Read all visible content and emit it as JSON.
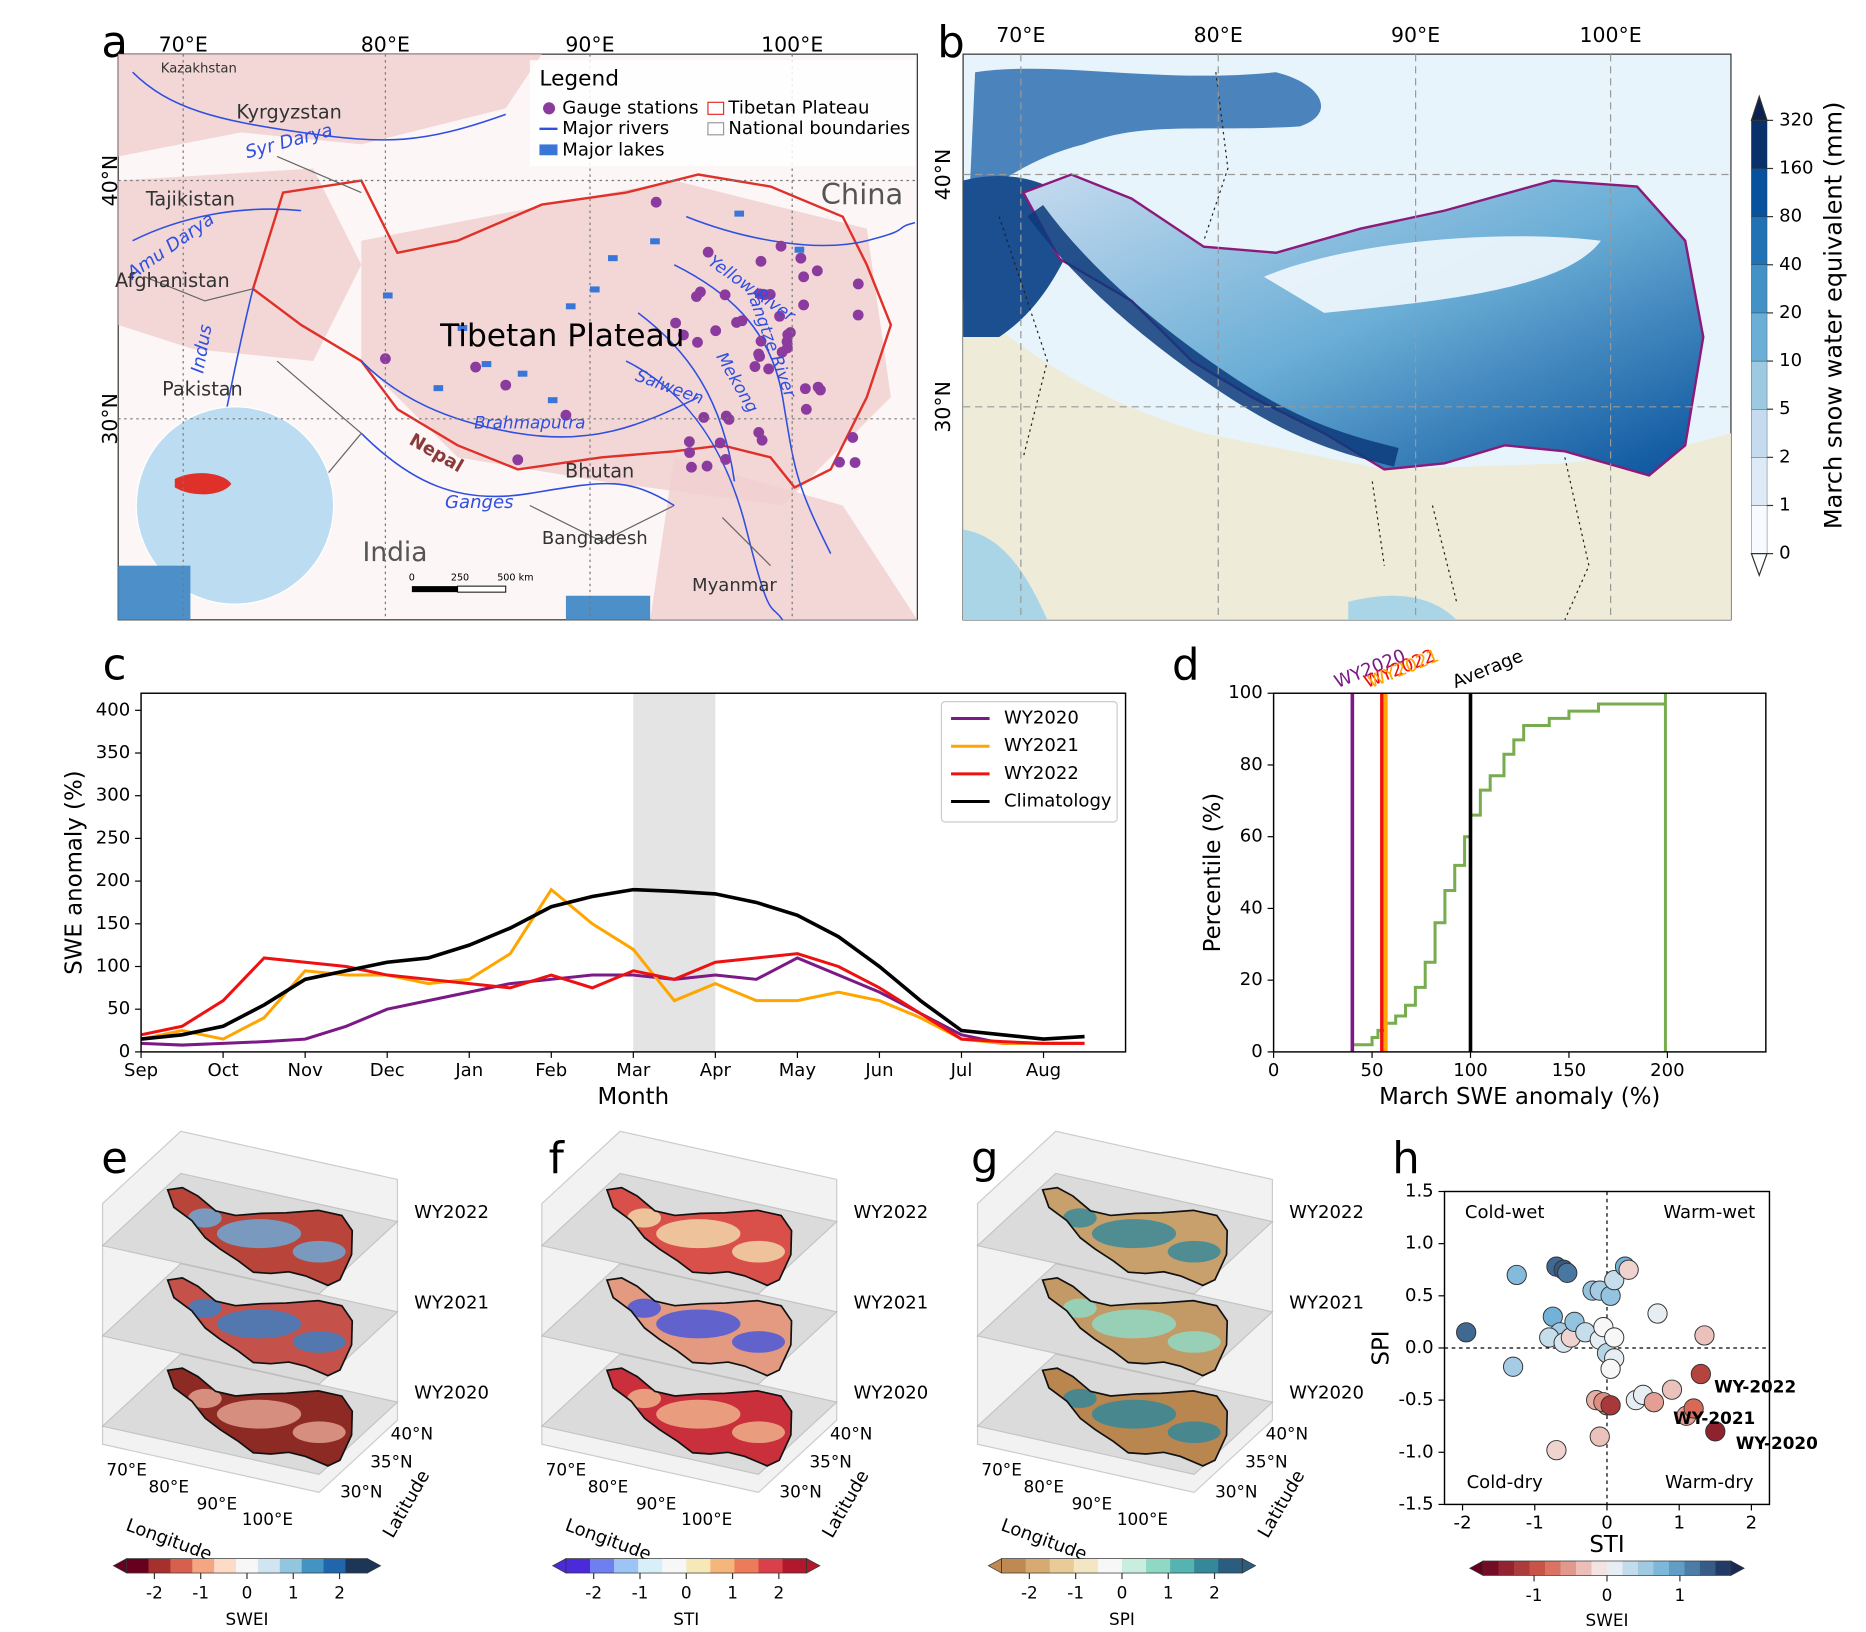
{
  "panel_labels": [
    "a",
    "b",
    "c",
    "d",
    "e",
    "f",
    "g",
    "h"
  ],
  "map_a": {
    "lon_labels": [
      "70°E",
      "80°E",
      "90°E",
      "100°E"
    ],
    "lat_labels": [
      "40°N",
      "30°N"
    ],
    "legend": {
      "title": "Legend",
      "items": [
        "Gauge stations",
        "Major rivers",
        "Major lakes",
        "Tibetan Plateau",
        "National boundaries"
      ]
    },
    "places": [
      "Kazakhstan",
      "Kyrgyzstan",
      "Syr Darya",
      "Tajikistan",
      "Amu Darya",
      "Afghanistan",
      "Indus",
      "Pakistan",
      "Tibetan Plateau",
      "China",
      "Yellow River",
      "Yangtze River",
      "Mekong",
      "Salween",
      "Brahmaputra",
      "Nepal",
      "Bhutan",
      "Ganges",
      "India",
      "Bangladesh",
      "Myanmar"
    ],
    "scale_labels": [
      "0",
      "250",
      "500 km"
    ]
  },
  "map_b": {
    "lon_labels": [
      "70°E",
      "80°E",
      "90°E",
      "100°E"
    ],
    "lat_labels": [
      "40°N",
      "30°N"
    ],
    "colorbar": {
      "label": "March snow water equivalent (mm)",
      "ticks": [
        0,
        1,
        2,
        5,
        10,
        20,
        40,
        80,
        160,
        320
      ],
      "colors": [
        "#f7fbff",
        "#deebf7",
        "#c6dbef",
        "#9ecae1",
        "#6baed6",
        "#4292c6",
        "#2171b5",
        "#08519c",
        "#08306b"
      ],
      "extend_color": "#0b2250"
    }
  },
  "maps_3d": [
    {
      "layers": [
        "WY2022",
        "WY2021",
        "WY2020"
      ],
      "lon_labels": [
        "70°E",
        "80°E",
        "90°E",
        "100°E"
      ],
      "lat_labels": [
        "40°N",
        "35°N",
        "30°N"
      ],
      "xlabel": "Longitude",
      "ylabel": "Latitude",
      "layer_colors": [
        [
          "#b8443a",
          "#6fa8d6"
        ],
        [
          "#c4514a",
          "#3f7fc2"
        ],
        [
          "#8e2a24",
          "#e3a08f"
        ]
      ],
      "colorbar": {
        "label": "SWEI",
        "ticks": [
          -2,
          -1,
          0,
          1,
          2
        ],
        "lim": [
          -2.6,
          2.6
        ],
        "colors": [
          "#67001f",
          "#a5302e",
          "#d6604d",
          "#f4a582",
          "#fddbc7",
          "#f7f7f7",
          "#d1e5f0",
          "#92c5de",
          "#4393c3",
          "#2166ac",
          "#1d3557"
        ]
      }
    },
    {
      "layers": [
        "WY2022",
        "WY2021",
        "WY2020"
      ],
      "lon_labels": [
        "70°E",
        "80°E",
        "90°E",
        "100°E"
      ],
      "lat_labels": [
        "40°N",
        "35°N",
        "30°N"
      ],
      "xlabel": "Longitude",
      "ylabel": "Latitude",
      "layer_colors": [
        [
          "#d9504a",
          "#f1d6a8"
        ],
        [
          "#e39a80",
          "#4a58d8"
        ],
        [
          "#c9303c",
          "#f0b08a"
        ]
      ],
      "colorbar": {
        "label": "STI",
        "ticks": [
          -2,
          -1,
          0,
          1,
          2
        ],
        "lim": [
          -2.6,
          2.6
        ],
        "colors": [
          "#4b2ad9",
          "#6f7ff0",
          "#9cc4f5",
          "#d8eef8",
          "#f7f7f7",
          "#f7e8b8",
          "#f4b67b",
          "#ec7b5a",
          "#d9404a",
          "#b2182b"
        ]
      }
    },
    {
      "layers": [
        "WY2022",
        "WY2021",
        "WY2020"
      ],
      "lon_labels": [
        "70°E",
        "80°E",
        "90°E",
        "100°E"
      ],
      "lat_labels": [
        "40°N",
        "35°N",
        "30°N"
      ],
      "xlabel": "Longitude",
      "ylabel": "Latitude",
      "layer_colors": [
        [
          "#c7a06c",
          "#3a8a9a"
        ],
        [
          "#c39a66",
          "#8fd9c4"
        ],
        [
          "#b98650",
          "#35879a"
        ]
      ],
      "colorbar": {
        "label": "SPI",
        "ticks": [
          -2,
          -1,
          0,
          1,
          2
        ],
        "lim": [
          -2.6,
          2.6
        ],
        "colors": [
          "#bf8a52",
          "#d6aa70",
          "#e8cb96",
          "#f5e6c3",
          "#f7f7f7",
          "#c9eee0",
          "#8fd9c4",
          "#56b4b0",
          "#35879a",
          "#2a5d7f"
        ]
      }
    }
  ],
  "chart_data": [
    {
      "type": "line",
      "xlabel": "Month",
      "ylabel": "SWE anomaly (%)",
      "categories": [
        "Sep",
        null,
        "Oct",
        null,
        "Nov",
        null,
        "Dec",
        null,
        "Jan",
        null,
        "Feb",
        null,
        "Mar",
        null,
        "Apr",
        null,
        "May",
        null,
        "Jun",
        null,
        "Jul",
        null,
        "Aug",
        null
      ],
      "shaded_span": [
        "Mar",
        "Apr"
      ],
      "ylim": [
        0,
        420
      ],
      "yticks": [
        0,
        50,
        100,
        150,
        200,
        250,
        300,
        350,
        400
      ],
      "legend": "upper right",
      "series": [
        {
          "name": "WY2020",
          "color": "#7b1a86",
          "values": [
            10,
            8,
            10,
            12,
            15,
            30,
            50,
            60,
            70,
            80,
            85,
            90,
            90,
            85,
            90,
            85,
            110,
            90,
            70,
            45,
            20,
            10,
            10,
            10
          ]
        },
        {
          "name": "WY2021",
          "color": "#ffa500",
          "values": [
            15,
            25,
            15,
            40,
            95,
            90,
            90,
            80,
            85,
            115,
            190,
            150,
            120,
            60,
            80,
            60,
            60,
            70,
            60,
            40,
            15,
            10,
            10,
            10
          ]
        },
        {
          "name": "WY2022",
          "color": "#ee1111",
          "values": [
            20,
            30,
            60,
            110,
            105,
            100,
            90,
            85,
            80,
            75,
            90,
            75,
            95,
            85,
            105,
            110,
            115,
            100,
            75,
            45,
            15,
            12,
            10,
            10
          ]
        },
        {
          "name": "Climatology",
          "color": "#000000",
          "values": [
            15,
            20,
            30,
            55,
            85,
            95,
            105,
            110,
            125,
            145,
            170,
            182,
            190,
            188,
            185,
            175,
            160,
            135,
            100,
            60,
            25,
            20,
            15,
            18
          ]
        }
      ]
    },
    {
      "type": "line",
      "xlabel": "March SWE anomaly (%)",
      "ylabel": "Percentile (%)",
      "xlim": [
        0,
        250
      ],
      "xticks": [
        0,
        50,
        100,
        150,
        200
      ],
      "ylim": [
        0,
        100
      ],
      "yticks": [
        0,
        20,
        40,
        60,
        80,
        100
      ],
      "markers": [
        {
          "label": "WY2020",
          "value": 40,
          "color": "#7b1a86"
        },
        {
          "label": "WY2022",
          "value": 55,
          "color": "#ee1111"
        },
        {
          "label": "WY2021",
          "value": 57,
          "color": "#ffa500"
        },
        {
          "label": "Average",
          "value": 100,
          "color": "#000000"
        }
      ],
      "series": [
        {
          "color": "#77ac4f",
          "x": [
            40,
            40,
            50,
            50,
            53,
            53,
            57,
            57,
            62,
            62,
            67,
            67,
            72,
            72,
            77,
            77,
            82,
            82,
            87,
            87,
            92,
            92,
            97,
            97,
            100,
            100,
            105,
            105,
            110,
            110,
            117,
            117,
            122,
            122,
            127,
            127,
            140,
            140,
            150,
            150,
            165,
            165,
            199,
            199,
            199
          ],
          "values": [
            0,
            2,
            2,
            4,
            4,
            6,
            6,
            8,
            8,
            10,
            10,
            13,
            13,
            18,
            18,
            25,
            25,
            36,
            36,
            45,
            45,
            52,
            52,
            60,
            60,
            66,
            66,
            73,
            73,
            77,
            77,
            83,
            83,
            87,
            87,
            91,
            91,
            93,
            93,
            95,
            95,
            97,
            97,
            100,
            0
          ]
        }
      ]
    },
    {
      "type": "scatter",
      "xlabel": "STI",
      "ylabel": "SPI",
      "xlim": [
        -2.25,
        2.25
      ],
      "xticks": [
        -2,
        -1,
        0,
        1,
        2
      ],
      "ylim": [
        -1.5,
        1.5
      ],
      "yticks": [
        -1.5,
        {
          "value": -1.0,
          "label": "-1.0"
        },
        -0.5,
        {
          "value": 0,
          "label": "0.0"
        },
        0.5,
        {
          "value": 1.0,
          "label": "1.0"
        },
        1.5
      ],
      "quadrant_labels": [
        "Cold-wet",
        "Warm-wet",
        "Cold-dry",
        "Warm-dry"
      ],
      "annotations": [
        "WY-2022",
        "WY-2021",
        "WY-2020"
      ],
      "x": [
        -1.95,
        -1.3,
        -1.25,
        -0.7,
        -0.6,
        -0.55,
        -0.7,
        -0.75,
        -0.65,
        -0.8,
        -0.6,
        -0.5,
        -0.45,
        -0.3,
        -0.2,
        -0.1,
        0.05,
        0.1,
        0.25,
        0.3,
        -0.1,
        0,
        0.1,
        0.05,
        -0.05,
        0.1,
        0.4,
        0.5,
        0.7,
        -0.15,
        -0.1,
        0,
        -0.05,
        0.65,
        1.1,
        1.2,
        0.9,
        1.3,
        1.5,
        0.05,
        1.35
      ],
      "values": [
        0.15,
        -0.18,
        0.7,
        0.78,
        0.75,
        0.72,
        -0.98,
        0.3,
        0.15,
        0.1,
        0.05,
        0.1,
        0.25,
        0.15,
        0.55,
        0.55,
        0.5,
        0.65,
        0.78,
        0.75,
        0.08,
        -0.05,
        -0.1,
        -0.2,
        0.2,
        0.1,
        -0.5,
        -0.45,
        0.33,
        -0.5,
        -0.85,
        -0.55,
        -0.52,
        -0.52,
        -0.65,
        -0.58,
        -0.4,
        -0.25,
        -0.8,
        -0.55,
        0.12
      ],
      "color_values": [
        1.3,
        0.5,
        0.7,
        1.3,
        1.4,
        1.2,
        -0.2,
        0.8,
        0.5,
        0.3,
        0.2,
        -0.2,
        0.6,
        0.3,
        0.6,
        0.5,
        0.6,
        0.3,
        0.8,
        -0.2,
        0.1,
        0.4,
        0.1,
        0,
        0,
        0,
        0.1,
        0.1,
        0.1,
        -0.4,
        -0.3,
        -0.5,
        -0.6,
        -0.5,
        -0.5,
        -0.8,
        -0.3,
        -1.1,
        -1.4,
        -1.2,
        -0.3
      ],
      "colormap": [
        "#67001f",
        "#d6604d",
        "#f7f7f7",
        "#6baed6",
        "#172a55"
      ],
      "colorbar": {
        "label": "SWEI",
        "ticks": [
          -1,
          0,
          1
        ],
        "lim": [
          -1.7,
          1.7
        ]
      }
    }
  ]
}
